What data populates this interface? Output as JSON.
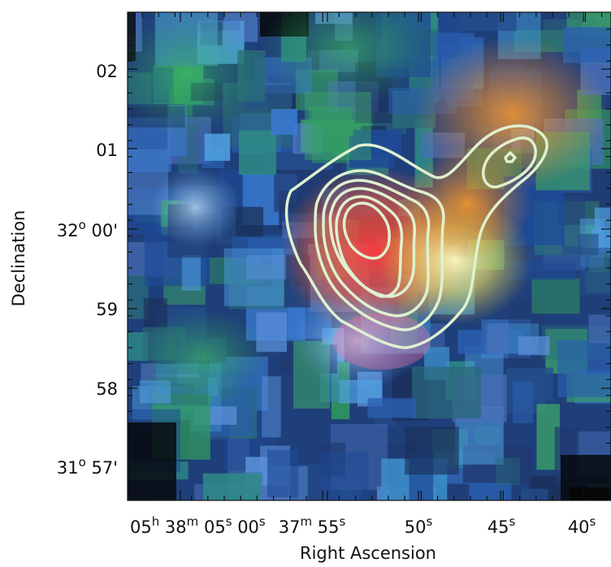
{
  "figure": {
    "x_axis_label": "Right Ascension",
    "y_axis_label": "Declination",
    "x_ticks": [
      {
        "parts": [
          [
            "05",
            "h"
          ],
          [
            " 38",
            "m"
          ],
          [
            " 05",
            "s"
          ],
          [
            " 00",
            "s"
          ]
        ]
      },
      {
        "parts": [
          [
            "37",
            "m"
          ],
          [
            " 55",
            "s"
          ]
        ]
      },
      {
        "parts": [
          [
            "50",
            "s"
          ]
        ]
      },
      {
        "parts": [
          [
            "45",
            "s"
          ]
        ]
      },
      {
        "parts": [
          [
            "40",
            "s"
          ]
        ]
      }
    ],
    "y_ticks": [
      {
        "parts": [
          [
            "02",
            ""
          ]
        ]
      },
      {
        "parts": [
          [
            "01",
            ""
          ]
        ]
      },
      {
        "parts": [
          [
            "32",
            "o"
          ],
          [
            " 00'",
            ""
          ]
        ]
      },
      {
        "parts": [
          [
            "59",
            ""
          ]
        ]
      },
      {
        "parts": [
          [
            "58",
            ""
          ]
        ]
      },
      {
        "parts": [
          [
            "31",
            "o"
          ],
          [
            " 57'",
            ""
          ]
        ]
      }
    ],
    "contour_color": "#dff0d0"
  }
}
